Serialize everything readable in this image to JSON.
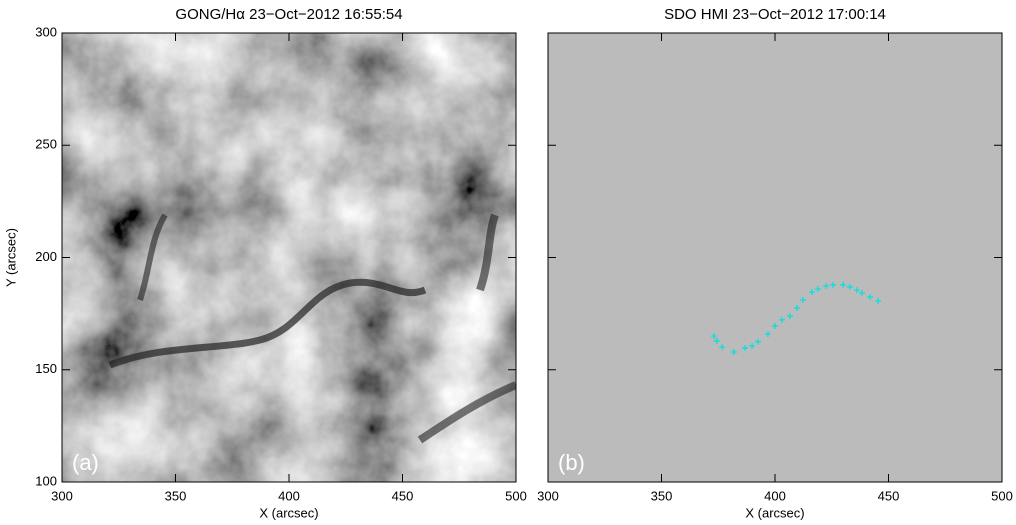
{
  "chart_data": [
    {
      "type": "image",
      "title": "GONG/Hα 23−Oct−2012 16:55:54",
      "panel_label": "(a)",
      "xlabel": "X (arcsec)",
      "ylabel": "Y (arcsec)",
      "xlim": [
        300,
        500
      ],
      "ylim": [
        100,
        300
      ],
      "xticks": [
        300,
        350,
        400,
        450,
        500
      ],
      "yticks": [
        100,
        150,
        200,
        250,
        300
      ]
    },
    {
      "type": "image",
      "title": "SDO HMI 23−Oct−2012 17:00:14",
      "panel_label": "(b)",
      "xlabel": "X (arcsec)",
      "xlim": [
        300,
        500
      ],
      "ylim": [
        100,
        300
      ],
      "xticks": [
        300,
        350,
        400,
        450,
        500
      ],
      "yticks": [
        100,
        150,
        200,
        250,
        300
      ],
      "series": [
        {
          "color": "#00e0e0",
          "x": [
            373.1,
            374.4,
            376.7,
            381.9,
            386.8,
            389.9,
            392.5,
            396.9,
            400.0,
            403.1,
            406.6,
            409.7,
            412.3,
            416.3,
            418.9,
            422.5,
            425.6,
            430.0,
            433.0,
            436.1,
            438.3,
            441.9,
            445.4
          ],
          "y": [
            165.0,
            162.8,
            160.1,
            157.9,
            159.7,
            160.6,
            162.4,
            165.9,
            169.5,
            172.2,
            173.9,
            177.5,
            181.1,
            184.6,
            186.0,
            187.3,
            187.8,
            187.8,
            186.9,
            185.5,
            184.2,
            182.4,
            180.6
          ]
        }
      ]
    }
  ]
}
